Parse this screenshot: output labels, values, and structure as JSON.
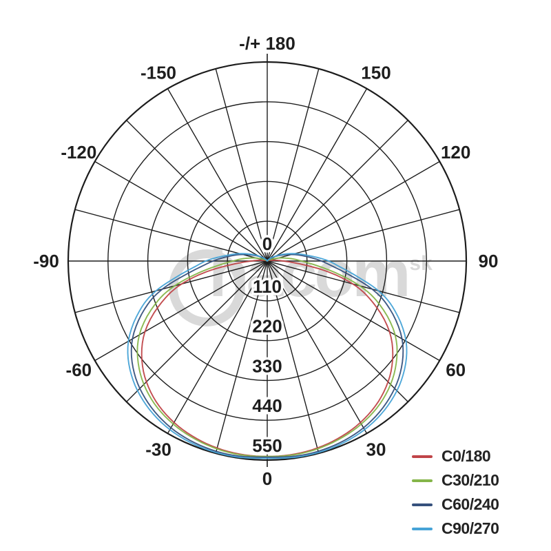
{
  "watermark": {
    "text": "hacom",
    "suffix": "sk",
    "color": "#cbcbcb"
  },
  "chart_data": {
    "type": "line",
    "kind": "polar-photometric-distribution",
    "title": "",
    "grid": {
      "ring_values": [
        110,
        220,
        330,
        440,
        550
      ],
      "spoke_step_deg": 15,
      "radial_max": 550,
      "grid_color": "#1c1c1c"
    },
    "radial_tick_labels": [
      "0",
      "110",
      "220",
      "330",
      "440",
      "550"
    ],
    "angle_labels": [
      {
        "deg": 180,
        "label": "-/+ 180"
      },
      {
        "deg": -150,
        "label": "-150"
      },
      {
        "deg": 150,
        "label": "150"
      },
      {
        "deg": -120,
        "label": "-120"
      },
      {
        "deg": 120,
        "label": "120"
      },
      {
        "deg": -90,
        "label": "-90"
      },
      {
        "deg": 90,
        "label": "90"
      },
      {
        "deg": -60,
        "label": "-60"
      },
      {
        "deg": 60,
        "label": "60"
      },
      {
        "deg": -30,
        "label": "-30"
      },
      {
        "deg": 30,
        "label": "30"
      },
      {
        "deg": 0,
        "label": "0"
      }
    ],
    "angles_deg": [
      0,
      10,
      20,
      30,
      40,
      50,
      60,
      70,
      75,
      80,
      85,
      90,
      95,
      100,
      110,
      120,
      130,
      140,
      150
    ],
    "symmetric": true,
    "series": [
      {
        "name": "C0/180",
        "color": "#c04448",
        "values": [
          540,
          538,
          530,
          515,
          490,
          450,
          390,
          300,
          245,
          170,
          90,
          45,
          25,
          12,
          5,
          2,
          0,
          0,
          0
        ]
      },
      {
        "name": "C30/210",
        "color": "#85b549",
        "values": [
          540,
          540,
          533,
          520,
          498,
          462,
          408,
          322,
          265,
          195,
          135,
          95,
          70,
          48,
          18,
          6,
          0,
          0,
          0
        ]
      },
      {
        "name": "C60/240",
        "color": "#36517d",
        "values": [
          542,
          545,
          542,
          532,
          512,
          480,
          430,
          352,
          300,
          235,
          185,
          150,
          118,
          92,
          50,
          25,
          10,
          3,
          0
        ]
      },
      {
        "name": "C90/270",
        "color": "#46a3d7",
        "values": [
          545,
          548,
          546,
          538,
          520,
          490,
          443,
          368,
          318,
          255,
          205,
          170,
          132,
          102,
          58,
          28,
          12,
          4,
          0
        ]
      }
    ],
    "legend_position": "bottom-right"
  }
}
